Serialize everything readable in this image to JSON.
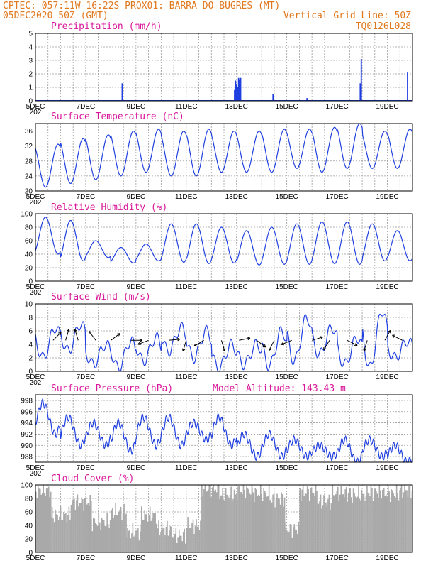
{
  "header": {
    "line1": "CPTEC:  057:11W-16:22S  PROX01: BARRA DO BUGRES (MT)",
    "line2": "05DEC2020 50Z (GMT)",
    "grid_note": "Vertical Grid Line: 50Z",
    "model_code": "TQ0126L028"
  },
  "colors": {
    "header": "#e0781e",
    "title": "#d8189a",
    "series": "#1f3fe0",
    "cloud": "#a9a9a9",
    "wind_arrow": "#000000"
  },
  "x_axis": {
    "ticks": [
      {
        "day": 5,
        "label": "5DEC"
      },
      {
        "day": 7,
        "label": "7DEC"
      },
      {
        "day": 9,
        "label": "9DEC"
      },
      {
        "day": 11,
        "label": "11DEC"
      },
      {
        "day": 13,
        "label": "13DEC"
      },
      {
        "day": 15,
        "label": "15DEC"
      },
      {
        "day": 17,
        "label": "17DEC"
      },
      {
        "day": 19,
        "label": "19DEC"
      }
    ],
    "extra_label": "202",
    "range_days": [
      5,
      20
    ]
  },
  "chart_data": [
    {
      "type": "bar",
      "title": "Precipitation (mm/h)",
      "ylim": [
        0,
        5
      ],
      "yticks": [
        0,
        1,
        2,
        3,
        4,
        5
      ],
      "grid": true,
      "events": [
        {
          "day": 8.45,
          "value": 1.3
        },
        {
          "day": 12.92,
          "value": 0.8
        },
        {
          "day": 12.96,
          "value": 1.5
        },
        {
          "day": 13.0,
          "value": 1.2
        },
        {
          "day": 13.04,
          "value": 1.0
        },
        {
          "day": 13.08,
          "value": 1.7
        },
        {
          "day": 13.12,
          "value": 1.6
        },
        {
          "day": 13.16,
          "value": 1.7
        },
        {
          "day": 14.45,
          "value": 0.5
        },
        {
          "day": 15.8,
          "value": 0.2
        },
        {
          "day": 17.92,
          "value": 1.3
        },
        {
          "day": 17.96,
          "value": 3.1
        },
        {
          "day": 19.8,
          "value": 2.1
        }
      ]
    },
    {
      "type": "line",
      "title": "Surface Temperature (nC)",
      "ylim": [
        20,
        38
      ],
      "yticks": [
        20,
        24,
        28,
        32,
        36
      ],
      "grid": true,
      "daily_min": [
        21,
        22,
        23,
        24,
        25,
        24,
        24,
        25,
        25,
        25,
        26,
        25,
        26,
        26,
        26
      ],
      "daily_max": [
        32.5,
        34,
        35,
        36,
        36.5,
        36,
        36.5,
        36,
        36,
        36.5,
        36.5,
        37,
        38,
        36,
        36.5
      ]
    },
    {
      "type": "line",
      "title": "Relative Humidity (%)",
      "ylim": [
        0,
        100
      ],
      "yticks": [
        0,
        20,
        40,
        60,
        80,
        100
      ],
      "grid": true,
      "daily_max": [
        95,
        90,
        60,
        50,
        55,
        85,
        85,
        80,
        75,
        80,
        85,
        88,
        88,
        85,
        75
      ],
      "daily_min": [
        40,
        30,
        35,
        27,
        30,
        28,
        26,
        27,
        24,
        25,
        25,
        26,
        25,
        30,
        30
      ]
    },
    {
      "type": "line",
      "title": "Surface Wind (m/s)",
      "ylim": [
        0,
        10
      ],
      "yticks": [
        0,
        2,
        4,
        6,
        8,
        10
      ],
      "grid": true,
      "daily_peak": [
        6.5,
        7,
        4,
        4.5,
        5,
        6.5,
        6,
        4,
        4,
        6,
        8,
        6.5,
        5,
        9,
        4.5
      ],
      "daily_low": [
        2,
        3,
        1,
        0.5,
        1.5,
        3,
        2,
        0.5,
        1,
        0.8,
        1.5,
        2.5,
        1,
        0.5,
        2
      ],
      "arrows": [
        {
          "day": 5.7,
          "u": 1,
          "v": 1
        },
        {
          "day": 6.2,
          "u": 0.3,
          "v": 1
        },
        {
          "day": 6.7,
          "u": -0.3,
          "v": 1
        },
        {
          "day": 7.4,
          "u": -0.6,
          "v": 0.8
        },
        {
          "day": 8.0,
          "u": 0.8,
          "v": 0.6
        },
        {
          "day": 8.8,
          "u": 1,
          "v": 0
        },
        {
          "day": 9.5,
          "u": -0.8,
          "v": -0.3
        },
        {
          "day": 10.3,
          "u": 1,
          "v": 0.1
        },
        {
          "day": 11.0,
          "u": -0.3,
          "v": -1
        },
        {
          "day": 11.7,
          "u": -1,
          "v": -0.6
        },
        {
          "day": 12.4,
          "u": 0.3,
          "v": -1
        },
        {
          "day": 13.1,
          "u": 1,
          "v": 0.2
        },
        {
          "day": 13.8,
          "u": 0.8,
          "v": -0.6
        },
        {
          "day": 14.5,
          "u": -0.5,
          "v": -1
        },
        {
          "day": 15.2,
          "u": -1,
          "v": -0.4
        },
        {
          "day": 16.0,
          "u": 1,
          "v": 0.3
        },
        {
          "day": 16.7,
          "u": -0.6,
          "v": -1
        },
        {
          "day": 17.4,
          "u": 1,
          "v": -0.5
        },
        {
          "day": 18.2,
          "u": -0.3,
          "v": -1
        },
        {
          "day": 18.9,
          "u": 0.5,
          "v": 0.9
        },
        {
          "day": 19.6,
          "u": -0.8,
          "v": 0.4
        }
      ]
    },
    {
      "type": "line",
      "title": "Surface Pressure (hPa)",
      "subtitle": "Model Altitude: 143.43 m",
      "ylim": [
        987,
        999
      ],
      "yticks": [
        988,
        990,
        992,
        994,
        996,
        998
      ],
      "grid": true,
      "daily_max": [
        997.5,
        995,
        994,
        994,
        995,
        995,
        994,
        995,
        992,
        992,
        991,
        990,
        991,
        991,
        990
      ],
      "daily_min": [
        992,
        990,
        990,
        989,
        990,
        990,
        991,
        990,
        988,
        988,
        988,
        988,
        987,
        988,
        987
      ]
    },
    {
      "type": "bar",
      "title": "Cloud Cover (%)",
      "ylim": [
        0,
        100
      ],
      "yticks": [
        0,
        20,
        40,
        60,
        80,
        100
      ],
      "grid": true,
      "segments": [
        {
          "from": 5.0,
          "to": 5.6,
          "value": 92
        },
        {
          "from": 5.6,
          "to": 6.4,
          "value": 55
        },
        {
          "from": 6.4,
          "to": 7.2,
          "value": 75
        },
        {
          "from": 7.2,
          "to": 8.0,
          "value": 45
        },
        {
          "from": 8.0,
          "to": 8.6,
          "value": 60
        },
        {
          "from": 8.6,
          "to": 9.2,
          "value": 30
        },
        {
          "from": 9.2,
          "to": 9.8,
          "value": 55
        },
        {
          "from": 9.8,
          "to": 10.4,
          "value": 35
        },
        {
          "from": 10.4,
          "to": 11.0,
          "value": 25
        },
        {
          "from": 11.0,
          "to": 11.6,
          "value": 40
        },
        {
          "from": 11.6,
          "to": 12.3,
          "value": 95
        },
        {
          "from": 12.3,
          "to": 13.0,
          "value": 85
        },
        {
          "from": 13.0,
          "to": 13.6,
          "value": 92
        },
        {
          "from": 13.6,
          "to": 14.3,
          "value": 88
        },
        {
          "from": 14.3,
          "to": 14.9,
          "value": 80
        },
        {
          "from": 14.9,
          "to": 15.5,
          "value": 35
        },
        {
          "from": 15.5,
          "to": 16.2,
          "value": 90
        },
        {
          "from": 16.2,
          "to": 16.8,
          "value": 75
        },
        {
          "from": 16.8,
          "to": 17.5,
          "value": 88
        },
        {
          "from": 17.5,
          "to": 18.2,
          "value": 85
        },
        {
          "from": 18.2,
          "to": 18.8,
          "value": 90
        },
        {
          "from": 18.8,
          "to": 19.5,
          "value": 88
        },
        {
          "from": 19.5,
          "to": 20.0,
          "value": 92
        }
      ]
    }
  ]
}
